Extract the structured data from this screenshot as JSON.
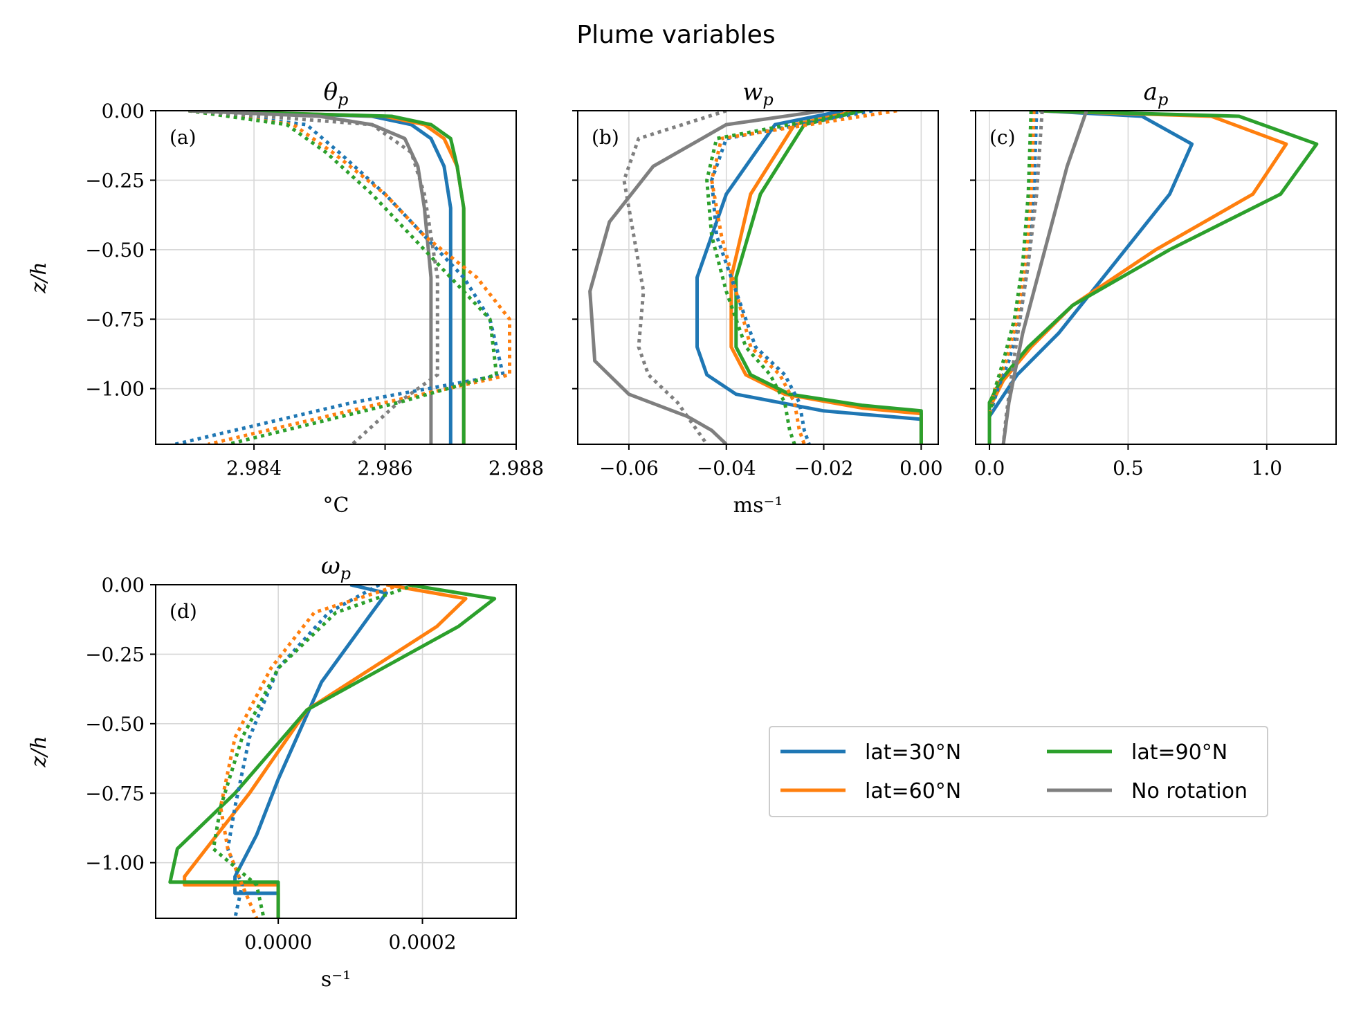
{
  "figure_title": "Plume variables",
  "legend": {
    "ncol": 2,
    "location": "lower-right",
    "entries": [
      {
        "label": "lat=30°N",
        "color": "#1f77b4"
      },
      {
        "label": "lat=60°N",
        "color": "#ff7f0e"
      },
      {
        "label": "lat=90°N",
        "color": "#2ca02c"
      },
      {
        "label": "No rotation",
        "color": "#7f7f7f"
      }
    ]
  },
  "styles": {
    "solid": "solid",
    "dotted": "dotted"
  },
  "chart_data": [
    {
      "type": "line",
      "title": "θ_p",
      "panel_label": "(a)",
      "xlabel": "°C",
      "ylabel": "z/h",
      "xlim": [
        2.9825,
        2.988
      ],
      "ylim": [
        -1.2,
        0.0
      ],
      "xticks": [
        2.984,
        2.986,
        2.988
      ],
      "xtick_labels": [
        "2.984",
        "2.986",
        "2.988"
      ],
      "yticks": [
        0.0,
        -0.25,
        -0.5,
        -0.75,
        -1.0
      ],
      "ytick_labels": [
        "0.00",
        "−0.25",
        "−0.50",
        "−0.75",
        "−1.00"
      ],
      "grid": true,
      "series": [
        {
          "name": "lat=30°N",
          "style": "solid",
          "x": [
            2.983,
            2.9858,
            2.9864,
            2.9867,
            2.9869,
            2.987,
            2.987,
            2.987,
            2.987,
            2.987
          ],
          "y": [
            0.0,
            -0.02,
            -0.05,
            -0.1,
            -0.2,
            -0.35,
            -0.6,
            -0.9,
            -1.1,
            -1.2
          ]
        },
        {
          "name": "lat=60°N",
          "style": "solid",
          "x": [
            2.983,
            2.986,
            2.9866,
            2.9869,
            2.9871,
            2.9872,
            2.9872,
            2.9872,
            2.9872,
            2.9872
          ],
          "y": [
            0.0,
            -0.02,
            -0.05,
            -0.1,
            -0.2,
            -0.35,
            -0.6,
            -0.9,
            -1.1,
            -1.2
          ]
        },
        {
          "name": "lat=90°N",
          "style": "solid",
          "x": [
            2.983,
            2.9861,
            2.9867,
            2.987,
            2.9871,
            2.9872,
            2.9872,
            2.9872,
            2.9872,
            2.9872
          ],
          "y": [
            0.0,
            -0.02,
            -0.05,
            -0.1,
            -0.2,
            -0.35,
            -0.6,
            -0.9,
            -1.1,
            -1.2
          ]
        },
        {
          "name": "No rotation",
          "style": "solid",
          "x": [
            2.983,
            2.985,
            2.9858,
            2.9863,
            2.9865,
            2.9866,
            2.9867,
            2.9867,
            2.9867,
            2.9867
          ],
          "y": [
            0.0,
            -0.02,
            -0.05,
            -0.1,
            -0.2,
            -0.35,
            -0.6,
            -0.9,
            -1.1,
            -1.2
          ]
        },
        {
          "name": "lat=30°N",
          "style": "dotted",
          "x": [
            2.983,
            2.9848,
            2.9853,
            2.986,
            2.9866,
            2.9872,
            2.9876,
            2.9878,
            2.9855,
            2.9828
          ],
          "y": [
            0.0,
            -0.05,
            -0.15,
            -0.3,
            -0.45,
            -0.6,
            -0.75,
            -0.95,
            -1.05,
            -1.2
          ]
        },
        {
          "name": "lat=60°N",
          "style": "dotted",
          "x": [
            2.983,
            2.9846,
            2.9852,
            2.986,
            2.9866,
            2.9874,
            2.9879,
            2.9879,
            2.986,
            2.9833
          ],
          "y": [
            0.0,
            -0.05,
            -0.15,
            -0.3,
            -0.45,
            -0.6,
            -0.75,
            -0.95,
            -1.05,
            -1.2
          ]
        },
        {
          "name": "lat=90°N",
          "style": "dotted",
          "x": [
            2.983,
            2.9845,
            2.9851,
            2.9858,
            2.9864,
            2.987,
            2.9876,
            2.9877,
            2.9862,
            2.9836
          ],
          "y": [
            0.0,
            -0.05,
            -0.15,
            -0.3,
            -0.45,
            -0.6,
            -0.75,
            -0.95,
            -1.05,
            -1.2
          ]
        },
        {
          "name": "No rotation",
          "style": "dotted",
          "x": [
            2.983,
            2.9858,
            2.9864,
            2.9866,
            2.9867,
            2.9868,
            2.9868,
            2.9868,
            2.9862,
            2.9855
          ],
          "y": [
            0.0,
            -0.05,
            -0.15,
            -0.3,
            -0.45,
            -0.6,
            -0.75,
            -0.95,
            -1.05,
            -1.2
          ]
        }
      ]
    },
    {
      "type": "line",
      "title": "w_p",
      "panel_label": "(b)",
      "xlabel": "ms⁻¹",
      "ylabel": "",
      "xlim": [
        -0.0705,
        0.0035
      ],
      "ylim": [
        -1.2,
        0.0
      ],
      "xticks": [
        -0.06,
        -0.04,
        -0.02,
        0.0
      ],
      "xtick_labels": [
        "−0.06",
        "−0.04",
        "−0.02",
        "0.00"
      ],
      "yticks": [
        0.0,
        -0.25,
        -0.5,
        -0.75,
        -1.0
      ],
      "ytick_labels": [
        "",
        "",
        "",
        "",
        ""
      ],
      "grid": true,
      "series": [
        {
          "name": "lat=30°N",
          "style": "solid",
          "x": [
            -0.016,
            -0.03,
            -0.04,
            -0.046,
            -0.046,
            -0.044,
            -0.038,
            -0.02,
            0.0,
            0.0
          ],
          "y": [
            0.0,
            -0.05,
            -0.3,
            -0.6,
            -0.85,
            -0.95,
            -1.02,
            -1.08,
            -1.11,
            -1.2
          ]
        },
        {
          "name": "lat=60°N",
          "style": "solid",
          "x": [
            -0.013,
            -0.026,
            -0.035,
            -0.039,
            -0.039,
            -0.036,
            -0.028,
            -0.012,
            0.0,
            0.0
          ],
          "y": [
            0.0,
            -0.05,
            -0.3,
            -0.6,
            -0.85,
            -0.95,
            -1.02,
            -1.07,
            -1.09,
            -1.2
          ]
        },
        {
          "name": "lat=90°N",
          "style": "solid",
          "x": [
            -0.012,
            -0.024,
            -0.033,
            -0.038,
            -0.038,
            -0.035,
            -0.027,
            -0.012,
            0.0,
            0.0
          ],
          "y": [
            0.0,
            -0.05,
            -0.3,
            -0.6,
            -0.85,
            -0.95,
            -1.02,
            -1.06,
            -1.08,
            -1.2
          ]
        },
        {
          "name": "No rotation",
          "style": "solid",
          "x": [
            -0.02,
            -0.04,
            -0.055,
            -0.064,
            -0.068,
            -0.067,
            -0.06,
            -0.048,
            -0.043,
            -0.04
          ],
          "y": [
            0.0,
            -0.05,
            -0.2,
            -0.4,
            -0.65,
            -0.9,
            -1.02,
            -1.1,
            -1.15,
            -1.2
          ]
        },
        {
          "name": "lat=30°N",
          "style": "dotted",
          "x": [
            -0.01,
            -0.04,
            -0.043,
            -0.042,
            -0.038,
            -0.034,
            -0.028,
            -0.025,
            -0.024,
            -0.023
          ],
          "y": [
            0.0,
            -0.1,
            -0.25,
            -0.45,
            -0.65,
            -0.85,
            -0.95,
            -1.05,
            -1.15,
            -1.2
          ]
        },
        {
          "name": "lat=60°N",
          "style": "dotted",
          "x": [
            -0.005,
            -0.041,
            -0.043,
            -0.041,
            -0.038,
            -0.035,
            -0.029,
            -0.026,
            -0.025,
            -0.024
          ],
          "y": [
            0.0,
            -0.1,
            -0.25,
            -0.45,
            -0.65,
            -0.85,
            -0.95,
            -1.05,
            -1.15,
            -1.2
          ]
        },
        {
          "name": "lat=90°N",
          "style": "dotted",
          "x": [
            -0.012,
            -0.042,
            -0.044,
            -0.043,
            -0.04,
            -0.036,
            -0.031,
            -0.028,
            -0.027,
            -0.026
          ],
          "y": [
            0.0,
            -0.1,
            -0.25,
            -0.45,
            -0.65,
            -0.85,
            -0.95,
            -1.05,
            -1.15,
            -1.2
          ]
        },
        {
          "name": "No rotation",
          "style": "dotted",
          "x": [
            -0.04,
            -0.058,
            -0.061,
            -0.059,
            -0.057,
            -0.058,
            -0.056,
            -0.05,
            -0.046,
            -0.044
          ],
          "y": [
            0.0,
            -0.1,
            -0.25,
            -0.45,
            -0.65,
            -0.85,
            -0.95,
            -1.05,
            -1.15,
            -1.2
          ]
        }
      ]
    },
    {
      "type": "line",
      "title": "a_p",
      "panel_label": "(c)",
      "xlabel": "",
      "ylabel": "",
      "xlim": [
        -0.05,
        1.25
      ],
      "ylim": [
        -1.2,
        0.0
      ],
      "xticks": [
        0.0,
        0.5,
        1.0
      ],
      "xtick_labels": [
        "0.0",
        "0.5",
        "1.0"
      ],
      "yticks": [
        0.0,
        -0.25,
        -0.5,
        -0.75,
        -1.0
      ],
      "ytick_labels": [
        "",
        "",
        "",
        "",
        ""
      ],
      "grid": true,
      "series": [
        {
          "name": "lat=30°N",
          "style": "solid",
          "x": [
            0.18,
            0.55,
            0.73,
            0.65,
            0.45,
            0.25,
            0.1,
            0.0,
            0.0
          ],
          "y": [
            0.0,
            -0.02,
            -0.12,
            -0.3,
            -0.55,
            -0.8,
            -0.95,
            -1.1,
            -1.2
          ]
        },
        {
          "name": "lat=60°N",
          "style": "solid",
          "x": [
            0.18,
            0.8,
            1.07,
            0.95,
            0.6,
            0.3,
            0.15,
            0.05,
            0.0,
            0.0
          ],
          "y": [
            0.0,
            -0.02,
            -0.12,
            -0.3,
            -0.5,
            -0.7,
            -0.85,
            -0.97,
            -1.07,
            -1.2
          ]
        },
        {
          "name": "lat=90°N",
          "style": "solid",
          "x": [
            0.18,
            0.9,
            1.18,
            1.05,
            0.65,
            0.3,
            0.14,
            0.04,
            0.0,
            0.0
          ],
          "y": [
            0.0,
            -0.02,
            -0.12,
            -0.3,
            -0.5,
            -0.7,
            -0.85,
            -0.97,
            -1.05,
            -1.2
          ]
        },
        {
          "name": "No rotation",
          "style": "solid",
          "x": [
            0.35,
            0.28,
            0.2,
            0.12,
            0.07,
            0.05
          ],
          "y": [
            0.0,
            -0.2,
            -0.5,
            -0.8,
            -1.05,
            -1.2
          ]
        },
        {
          "name": "lat=30°N",
          "style": "dotted",
          "x": [
            0.17,
            0.16,
            0.14,
            0.11,
            0.07,
            0.03,
            0.0
          ],
          "y": [
            0.0,
            -0.3,
            -0.55,
            -0.75,
            -0.9,
            -1.0,
            -1.1
          ]
        },
        {
          "name": "lat=60°N",
          "style": "dotted",
          "x": [
            0.16,
            0.15,
            0.13,
            0.1,
            0.06,
            0.02,
            0.0
          ],
          "y": [
            0.0,
            -0.3,
            -0.55,
            -0.75,
            -0.9,
            -1.0,
            -1.1
          ]
        },
        {
          "name": "lat=90°N",
          "style": "dotted",
          "x": [
            0.15,
            0.14,
            0.12,
            0.09,
            0.05,
            0.02,
            0.0
          ],
          "y": [
            0.0,
            -0.3,
            -0.55,
            -0.75,
            -0.9,
            -1.0,
            -1.1
          ]
        },
        {
          "name": "No rotation",
          "style": "dotted",
          "x": [
            0.19,
            0.17,
            0.14,
            0.11,
            0.08,
            0.06,
            0.05
          ],
          "y": [
            0.0,
            -0.3,
            -0.55,
            -0.75,
            -0.95,
            -1.1,
            -1.2
          ]
        }
      ]
    },
    {
      "type": "line",
      "title": "ω_p",
      "panel_label": "(d)",
      "xlabel": "s⁻¹",
      "ylabel": "z/h",
      "xlim": [
        -0.00017,
        0.00033
      ],
      "ylim": [
        -1.2,
        0.0
      ],
      "xticks": [
        0.0,
        0.0002
      ],
      "xtick_labels": [
        "0.0000",
        "0.0002"
      ],
      "yticks": [
        0.0,
        -0.25,
        -0.5,
        -0.75,
        -1.0
      ],
      "ytick_labels": [
        "0.00",
        "−0.25",
        "−0.50",
        "−0.75",
        "−1.00"
      ],
      "grid": true,
      "series": [
        {
          "name": "lat=30°N",
          "style": "solid",
          "x": [
            0.0001,
            0.00015,
            0.00013,
            6e-05,
            0.0,
            -3e-05,
            -6e-05,
            -6e-05,
            0.0,
            0.0
          ],
          "y": [
            0.0,
            -0.03,
            -0.1,
            -0.35,
            -0.7,
            -0.9,
            -1.05,
            -1.11,
            -1.11,
            -1.2
          ]
        },
        {
          "name": "lat=60°N",
          "style": "solid",
          "x": [
            0.00015,
            0.00026,
            0.00022,
            4e-05,
            -4e-05,
            -0.0001,
            -0.00013,
            -0.00013,
            0.0,
            0.0
          ],
          "y": [
            0.0,
            -0.05,
            -0.15,
            -0.45,
            -0.75,
            -0.95,
            -1.05,
            -1.08,
            -1.08,
            -1.2
          ]
        },
        {
          "name": "lat=90°N",
          "style": "solid",
          "x": [
            0.00018,
            0.0003,
            0.00025,
            4e-05,
            -6e-05,
            -0.00014,
            -0.00015,
            0.0,
            0.0
          ],
          "y": [
            0.0,
            -0.05,
            -0.15,
            -0.45,
            -0.75,
            -0.95,
            -1.07,
            -1.07,
            -1.2
          ]
        },
        {
          "name": "lat=30°N",
          "style": "dotted",
          "x": [
            0.00014,
            7e-05,
            0.0,
            -4e-05,
            -6e-05,
            -7e-05,
            -5e-05,
            -6e-05
          ],
          "y": [
            0.0,
            -0.1,
            -0.3,
            -0.55,
            -0.8,
            -0.95,
            -1.08,
            -1.2
          ]
        },
        {
          "name": "lat=60°N",
          "style": "dotted",
          "x": [
            0.00017,
            5e-05,
            -1e-05,
            -6e-05,
            -8e-05,
            -7e-05,
            -5e-05,
            -3e-05
          ],
          "y": [
            0.0,
            -0.1,
            -0.3,
            -0.55,
            -0.8,
            -0.95,
            -1.08,
            -1.2
          ]
        },
        {
          "name": "lat=90°N",
          "style": "dotted",
          "x": [
            0.00019,
            8e-05,
            0.0,
            -5e-05,
            -8e-05,
            -9e-05,
            -3e-05,
            -2e-05
          ],
          "y": [
            0.0,
            -0.1,
            -0.3,
            -0.55,
            -0.8,
            -0.95,
            -1.08,
            -1.2
          ]
        }
      ]
    }
  ]
}
